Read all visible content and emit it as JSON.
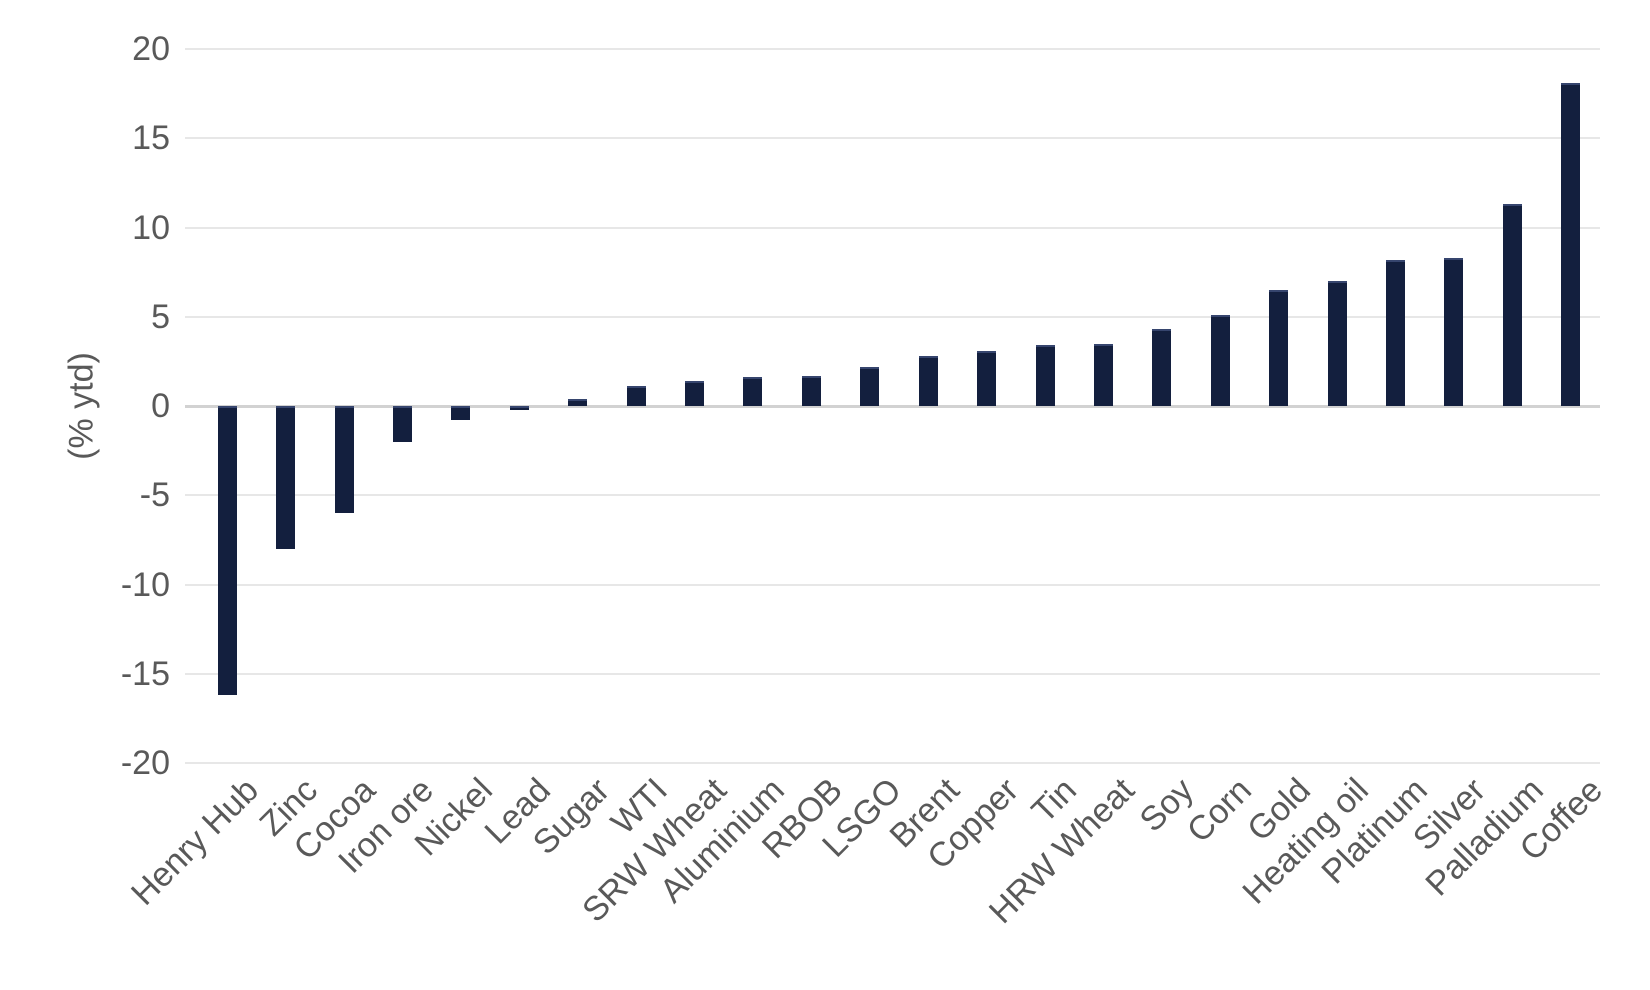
{
  "chart_data": {
    "type": "bar",
    "title": "",
    "xlabel": "",
    "ylabel": "(% ytd)",
    "ylim": [
      -20,
      20
    ],
    "yticks": [
      20,
      15,
      10,
      5,
      0,
      -5,
      -10,
      -15,
      -20
    ],
    "grid": "horizontal-light",
    "legend_position": "none",
    "bar_color": "#131f3e",
    "categories": [
      "Henry Hub",
      "Zinc",
      "Cocoa",
      "Iron ore",
      "Nickel",
      "Lead",
      "Sugar",
      "WTI",
      "SRW Wheat",
      "Aluminium",
      "RBOB",
      "LSGO",
      "Brent",
      "Copper",
      "Tin",
      "HRW Wheat",
      "Soy",
      "Corn",
      "Gold",
      "Heating oil",
      "Platinum",
      "Silver",
      "Palladium",
      "Coffee"
    ],
    "values": [
      -16.2,
      -8.0,
      -6.0,
      -2.0,
      -0.8,
      -0.2,
      0.4,
      1.1,
      1.4,
      1.6,
      1.7,
      2.2,
      2.8,
      3.1,
      3.4,
      3.5,
      4.3,
      5.1,
      6.5,
      7.0,
      8.2,
      8.3,
      11.3,
      18.1
    ]
  },
  "colors": {
    "background": "#ffffff",
    "bar": "#131f3e",
    "axis_text": "#595959",
    "gridline": "#e7e7e7",
    "zero_line": "#d2d2d2"
  }
}
